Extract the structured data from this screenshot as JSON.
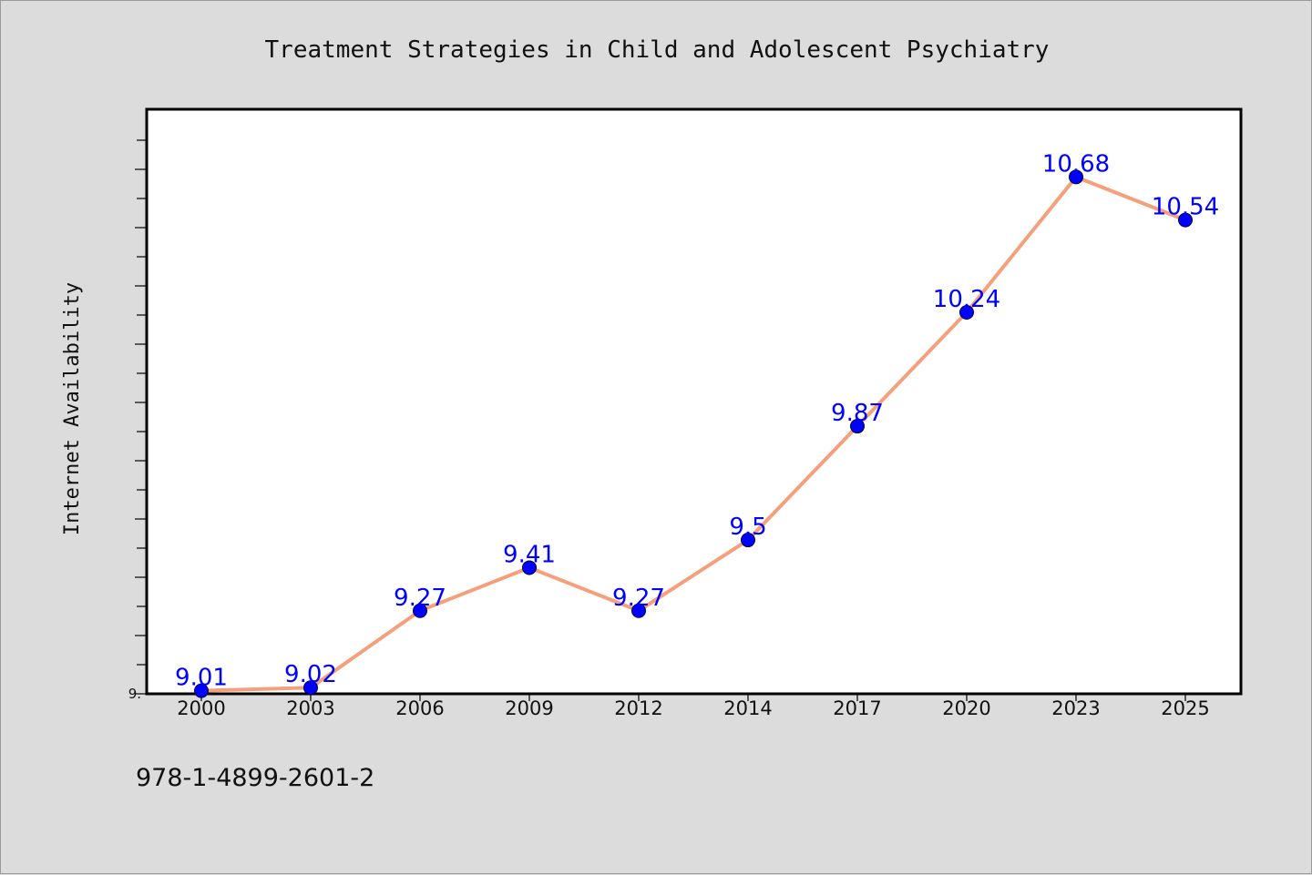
{
  "chart_data": {
    "type": "line",
    "title": "Treatment Strategies in Child and Adolescent Psychiatry",
    "xlabel": "",
    "ylabel": "Internet Availability",
    "categories": [
      "2000",
      "2003",
      "2006",
      "2009",
      "2012",
      "2014",
      "2017",
      "2020",
      "2023",
      "2025"
    ],
    "series": [
      {
        "values": [
          9.01,
          9.02,
          9.27,
          9.41,
          9.27,
          9.5,
          9.87,
          10.24,
          10.68,
          10.54
        ],
        "labels": [
          "9.01",
          "9.02",
          "9.27",
          "9.41",
          "9.27",
          "9.5",
          "9.87",
          "10.24",
          "10.68",
          "10.54"
        ]
      }
    ],
    "ylim": [
      9.0,
      10.9
    ],
    "y_tick_labels": [
      "9."
    ],
    "grid": false,
    "legend": "none",
    "colors": {
      "line": "#f4a07c",
      "marker": "#0000ff",
      "data_label": "#0000ff",
      "plot_background": "#ffffff",
      "page_background": "#dcdcdc"
    }
  },
  "footer": {
    "text": "978-1-4899-2601-2"
  }
}
